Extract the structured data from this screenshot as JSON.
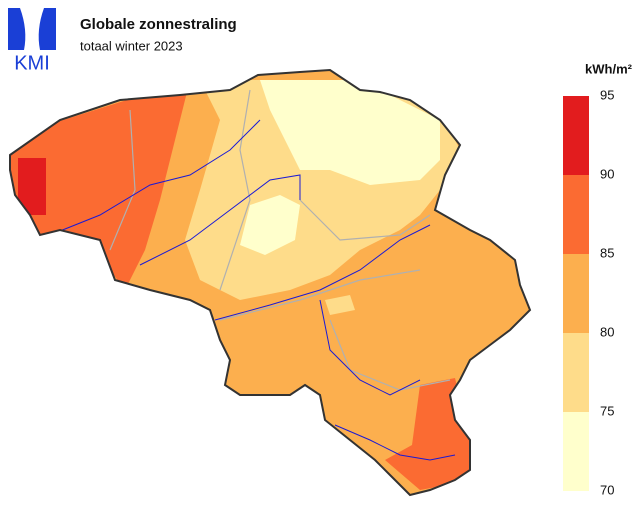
{
  "header": {
    "title": "Globale zonnestraling",
    "subtitle": "totaal winter 2023"
  },
  "logo": {
    "text": "KMI"
  },
  "legend": {
    "unit": "kWh/m²",
    "classes": [
      {
        "from": 70,
        "to": 75,
        "color": "#ffffcc"
      },
      {
        "from": 75,
        "to": 80,
        "color": "#fedc8a"
      },
      {
        "from": 80,
        "to": 85,
        "color": "#fcaf4e"
      },
      {
        "from": 85,
        "to": 90,
        "color": "#fb6b32"
      },
      {
        "from": 90,
        "to": 95,
        "color": "#e21c1e"
      }
    ],
    "ticks": [
      70,
      75,
      80,
      85,
      90,
      95
    ]
  }
}
